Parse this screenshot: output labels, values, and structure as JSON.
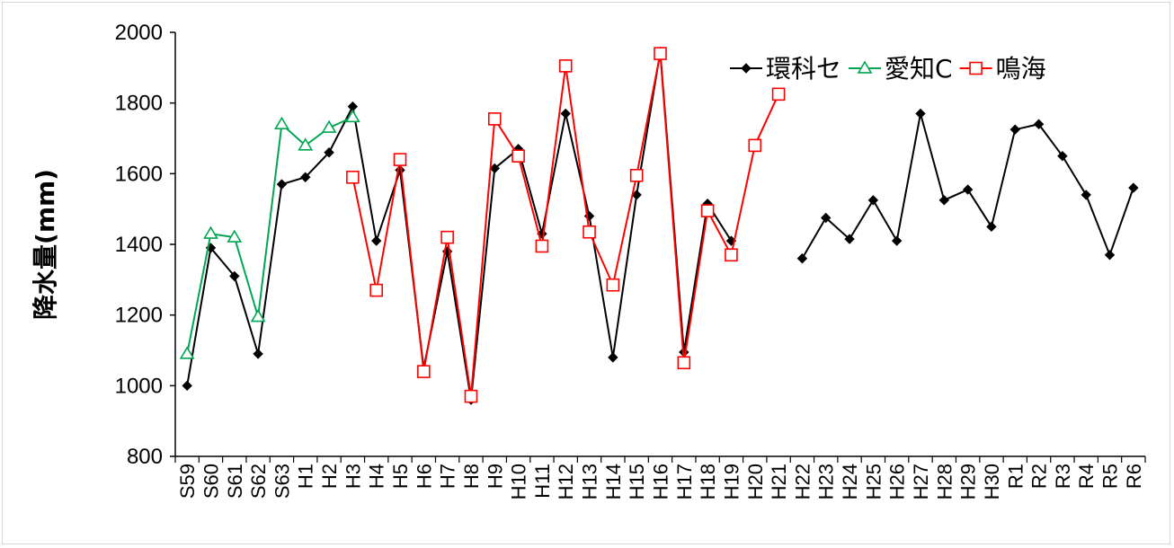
{
  "chart_data": {
    "type": "line",
    "ylabel": "降水量(mm)",
    "ylim": [
      800,
      2000
    ],
    "yticks": [
      800,
      1000,
      1200,
      1400,
      1600,
      1800,
      2000
    ],
    "categories": [
      "S59",
      "S60",
      "S61",
      "S62",
      "S63",
      "H1",
      "H2",
      "H3",
      "H4",
      "H5",
      "H6",
      "H7",
      "H8",
      "H9",
      "H10",
      "H11",
      "H12",
      "H13",
      "H14",
      "H15",
      "H16",
      "H17",
      "H18",
      "H19",
      "H20",
      "H21",
      "H22",
      "H23",
      "H24",
      "H25",
      "H26",
      "H27",
      "H28",
      "H29",
      "H30",
      "R1",
      "R2",
      "R3",
      "R4",
      "R5",
      "R6"
    ],
    "legend_position": "top-right",
    "grid": false,
    "series": [
      {
        "name": "環科セ",
        "color": "#000000",
        "marker": "diamond",
        "values": [
          1000,
          1390,
          1310,
          1090,
          1570,
          1590,
          1660,
          1790,
          1410,
          1610,
          1050,
          1380,
          960,
          1615,
          1670,
          1430,
          1770,
          1480,
          1080,
          1540,
          1945,
          1095,
          1515,
          1410,
          null,
          null,
          1360,
          1475,
          1415,
          1525,
          1410,
          1770,
          1525,
          1555,
          1450,
          1725,
          1740,
          1650,
          1540,
          1370,
          1560
        ]
      },
      {
        "name": "愛知C",
        "color": "#00a651",
        "marker": "triangle",
        "values": [
          1090,
          1430,
          1420,
          1195,
          1740,
          1680,
          1730,
          1760,
          null,
          null,
          null,
          null,
          null,
          null,
          null,
          null,
          null,
          null,
          null,
          null,
          null,
          null,
          null,
          null,
          null,
          null,
          null,
          null,
          null,
          null,
          null,
          null,
          null,
          null,
          null,
          null,
          null,
          null,
          null,
          null,
          null
        ]
      },
      {
        "name": "鳴海",
        "color": "#ff0000",
        "marker": "square",
        "values": [
          null,
          null,
          null,
          null,
          null,
          null,
          null,
          1590,
          1270,
          1640,
          1040,
          1420,
          970,
          1755,
          1650,
          1395,
          1905,
          1435,
          1285,
          1595,
          1940,
          1065,
          1495,
          1370,
          1680,
          1825,
          null,
          null,
          null,
          null,
          null,
          null,
          null,
          null,
          null,
          null,
          null,
          null,
          null,
          null,
          null
        ]
      }
    ]
  }
}
